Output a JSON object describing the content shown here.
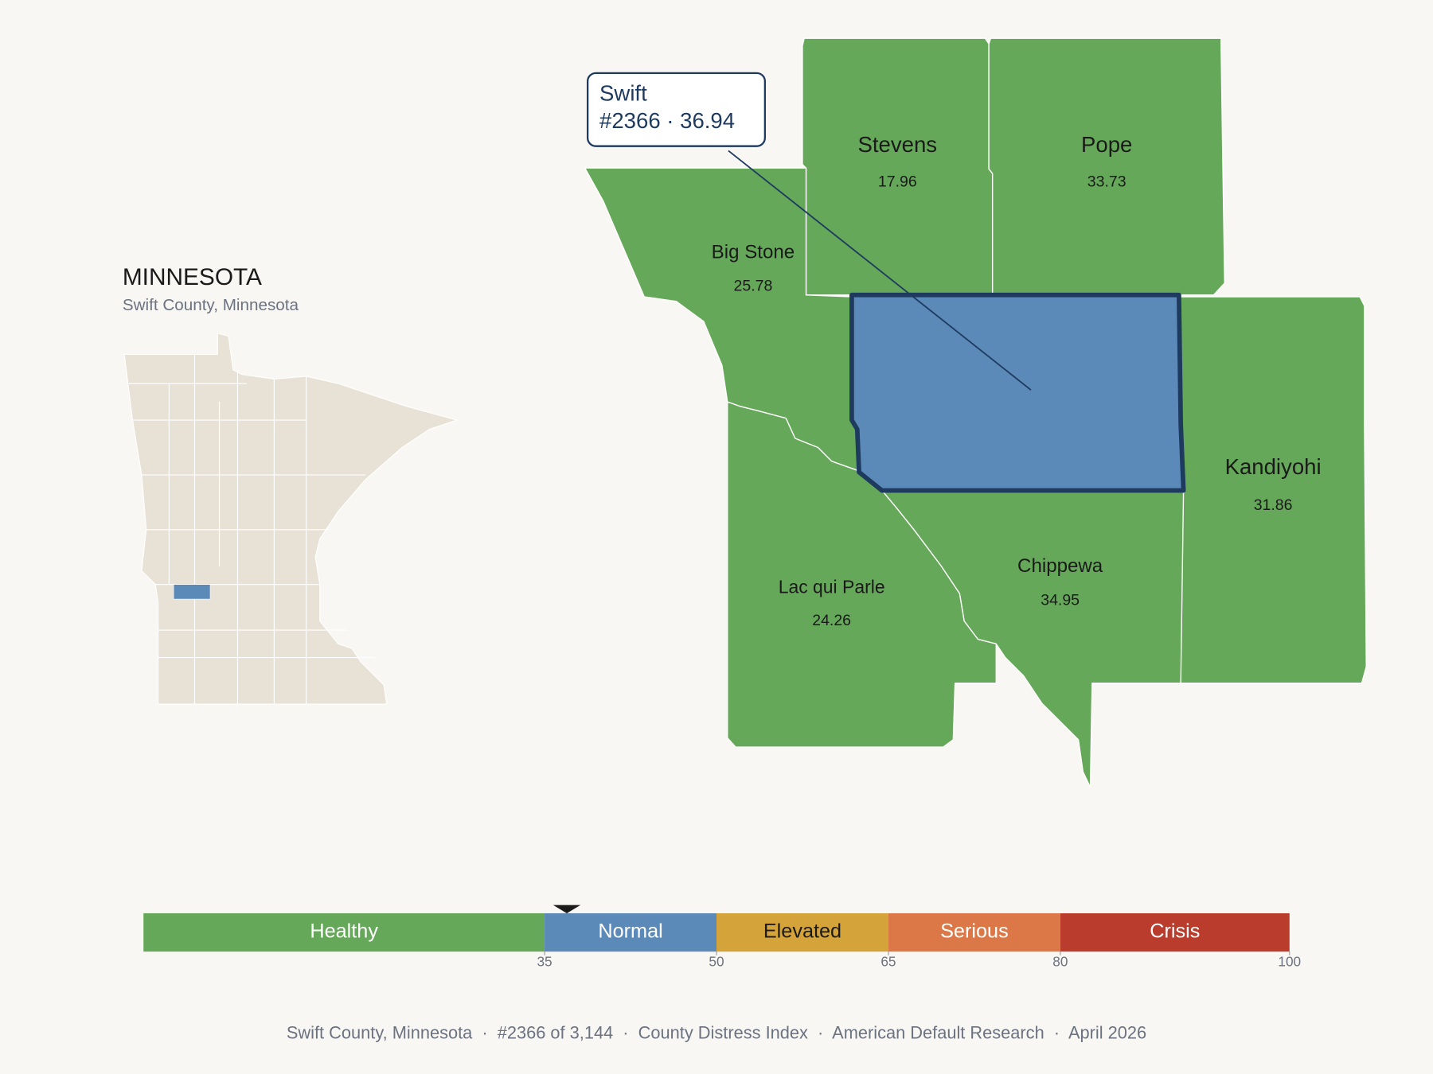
{
  "title": "MINNESOTA",
  "subtitle": "Swift County, Minnesota",
  "callout": {
    "name": "Swift",
    "label": "#2366 · 36.94",
    "value": 36.94
  },
  "counties": [
    {
      "name": "Stevens",
      "value": "17.96"
    },
    {
      "name": "Pope",
      "value": "33.73"
    },
    {
      "name": "Big Stone",
      "value": "25.78"
    },
    {
      "name": "Kandiyohi",
      "value": "31.86"
    },
    {
      "name": "Chippewa",
      "value": "34.95"
    },
    {
      "name": "Lac qui Parle",
      "value": "24.26"
    }
  ],
  "scale": {
    "lim": [
      0,
      100
    ],
    "ticks": [
      35,
      50,
      65,
      80,
      100
    ],
    "bands": [
      {
        "label": "Healthy",
        "color": "#66a859"
      },
      {
        "label": "Normal",
        "color": "#5b8ab9"
      },
      {
        "label": "Elevated",
        "color": "#d4a33a"
      },
      {
        "label": "Serious",
        "color": "#dc7847"
      },
      {
        "label": "Crisis",
        "color": "#b93c2c"
      }
    ]
  },
  "footer": "Swift County, Minnesota  ·  #2366 of 3,144  ·  County Distress Index  ·  American Default Research  ·  April 2026"
}
